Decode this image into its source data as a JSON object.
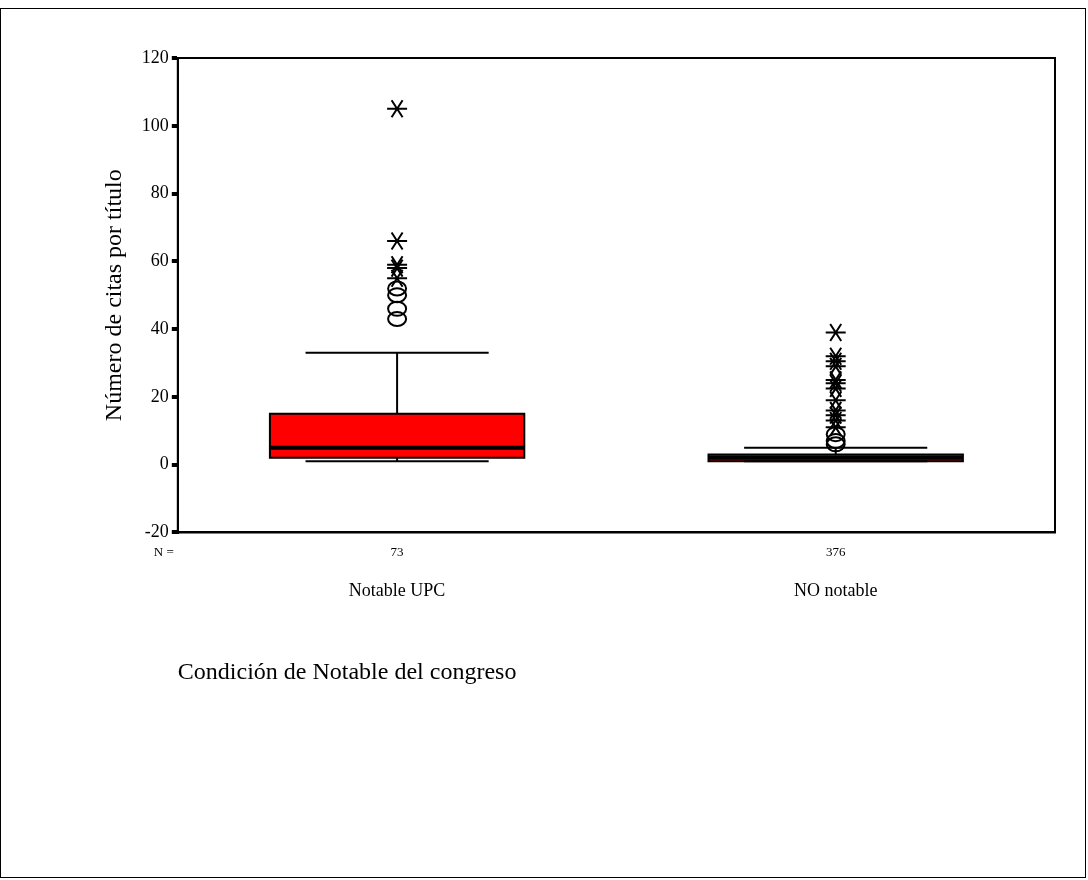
{
  "chart_data": {
    "type": "box",
    "xlabel": "Condición de Notable del congreso",
    "ylabel": "Número de citas por título",
    "categories": [
      "Notable UPC",
      "NO notable"
    ],
    "ylim": [
      -20,
      120
    ],
    "yticks": [
      -20,
      0,
      20,
      40,
      60,
      80,
      100,
      120
    ],
    "series": [
      {
        "color": "#ff0000",
        "boxes": [
          {
            "low": 1,
            "q1": 2,
            "median": 5,
            "q3": 15,
            "high": 33,
            "outliers": [
              43,
              46,
              50,
              52,
              55,
              58,
              59,
              66,
              105
            ]
          },
          {
            "low": 1,
            "q1": 1,
            "median": 2,
            "q3": 3,
            "high": 5,
            "outliers": [
              6,
              7,
              9,
              11,
              13,
              14.6,
              16,
              19,
              22.5,
              24,
              25,
              29,
              30.5,
              32,
              39
            ]
          }
        ]
      }
    ],
    "annotations": [
      "N =",
      "73",
      "376"
    ]
  }
}
